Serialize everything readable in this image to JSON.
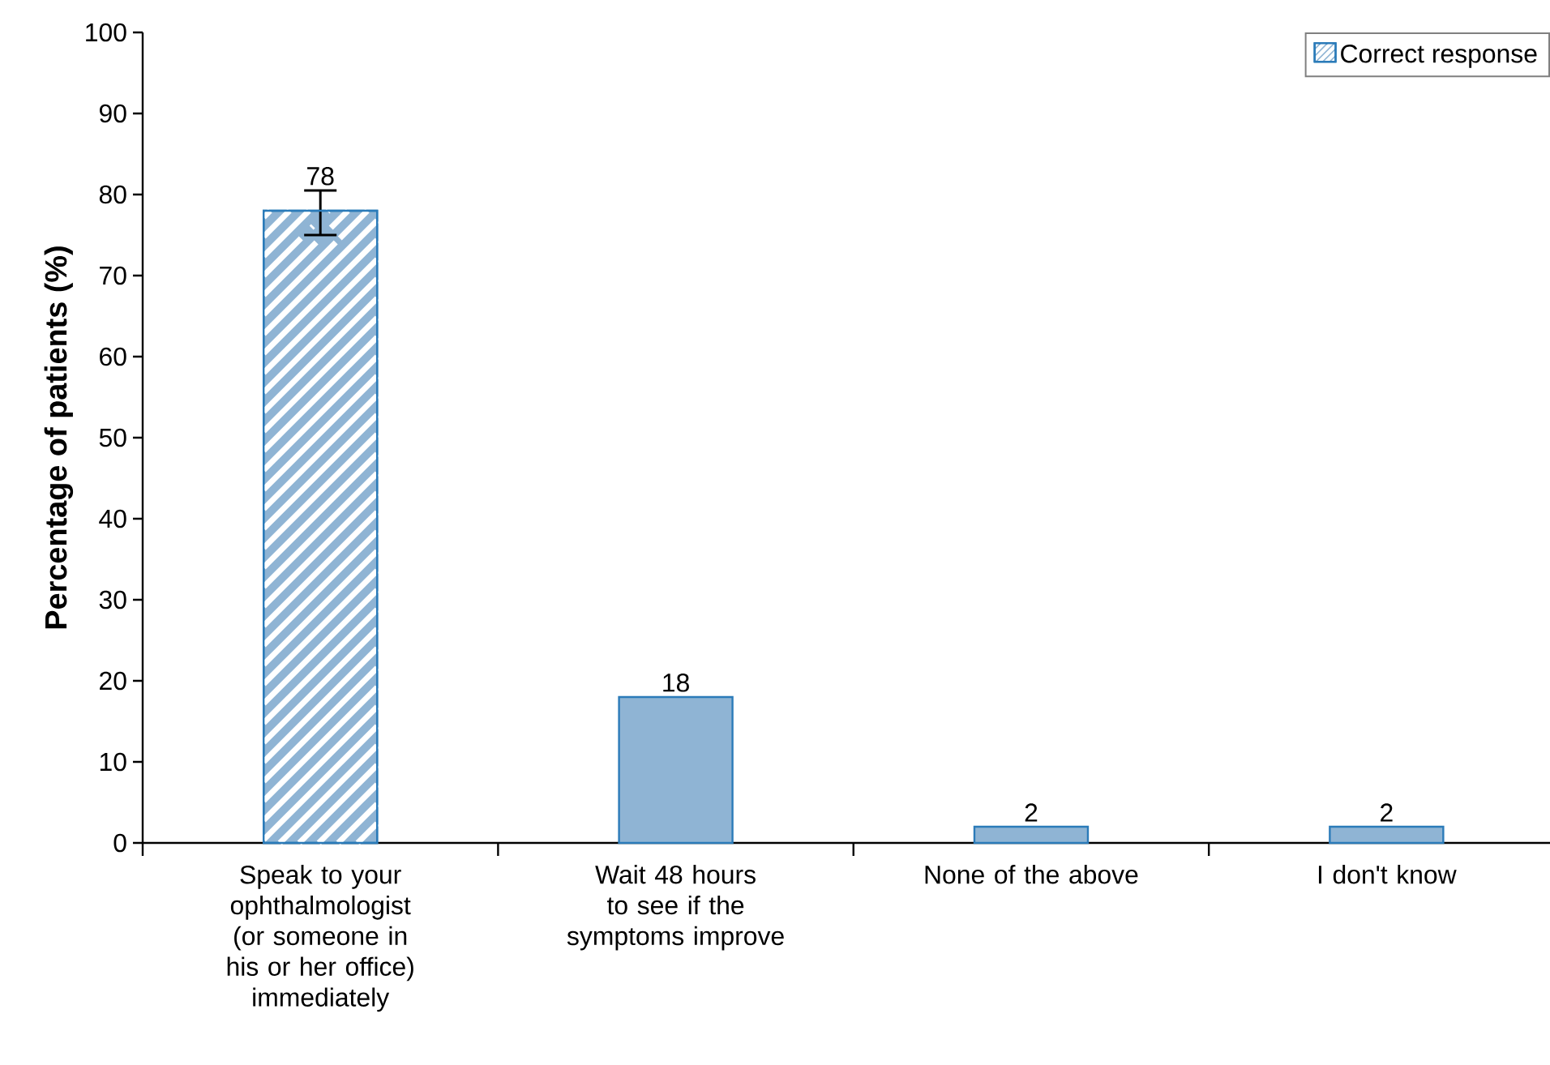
{
  "chart_data": {
    "type": "bar",
    "ylabel": "Percentage of patients (%)",
    "categories": [
      "Speak to your ophthalmologist (or someone in his or her office) immediately",
      "Wait 48 hours to see if the symptoms improve",
      "None of the above",
      "I don't know"
    ],
    "series": [
      {
        "name": "Correct response",
        "color": "#8fb4d4",
        "values": [
          78,
          null,
          null,
          null
        ],
        "errors": [
          [
            75,
            80.5
          ],
          null,
          null,
          null
        ]
      },
      {
        "color": "#8fb4d4",
        "values": [
          null,
          18,
          2,
          2
        ]
      }
    ],
    "ylim": [
      0,
      100
    ],
    "yticks": [
      0,
      10,
      20,
      30,
      40,
      50,
      60,
      70,
      80,
      90,
      100
    ],
    "data_labels": true,
    "legend": "top right",
    "grid": false
  }
}
